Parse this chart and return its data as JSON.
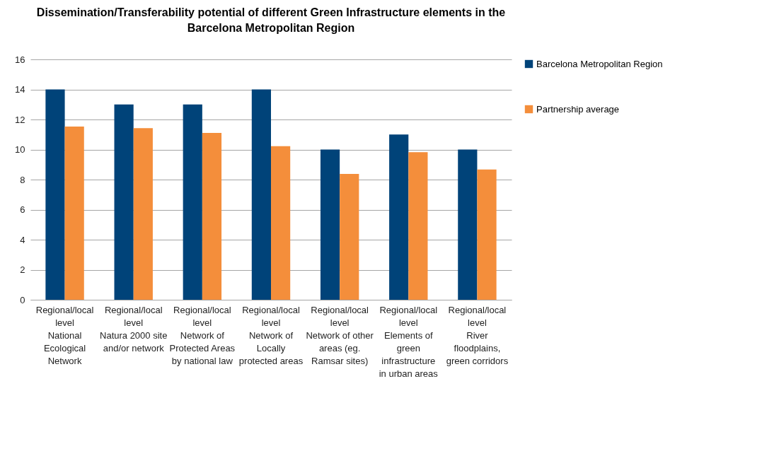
{
  "chart_data": {
    "type": "bar",
    "title": "Dissemination/Transferability potential of different Green Infrastructure elements in the Barcelona Metropolitan Region",
    "categories": [
      "Regional/local level\nNational Ecological Network",
      "Regional/local level\nNatura 2000 site and/or network",
      "Regional/local level\nNetwork of Protected Areas by national law",
      "Regional/local level\nNetwork of Locally protected areas",
      "Regional/local level\nNetwork of other areas (eg. Ramsar sites)",
      "Regional/local level\nElements of green infrastructure in urban areas",
      "Regional/local level\nRiver floodplains, green corridors"
    ],
    "series": [
      {
        "name": "Barcelona Metropolitan Region",
        "color": "#004379",
        "values": [
          14,
          13,
          13,
          14,
          10,
          11,
          10
        ]
      },
      {
        "name": "Partnership average",
        "color": "#f48e3b",
        "values": [
          11.53,
          11.42,
          11.11,
          10.22,
          8.38,
          9.82,
          8.67
        ]
      }
    ],
    "ylim": [
      0,
      16
    ],
    "yticks": [
      0,
      2,
      4,
      6,
      8,
      10,
      12,
      14,
      16
    ],
    "grid": "y",
    "legend": "right"
  }
}
